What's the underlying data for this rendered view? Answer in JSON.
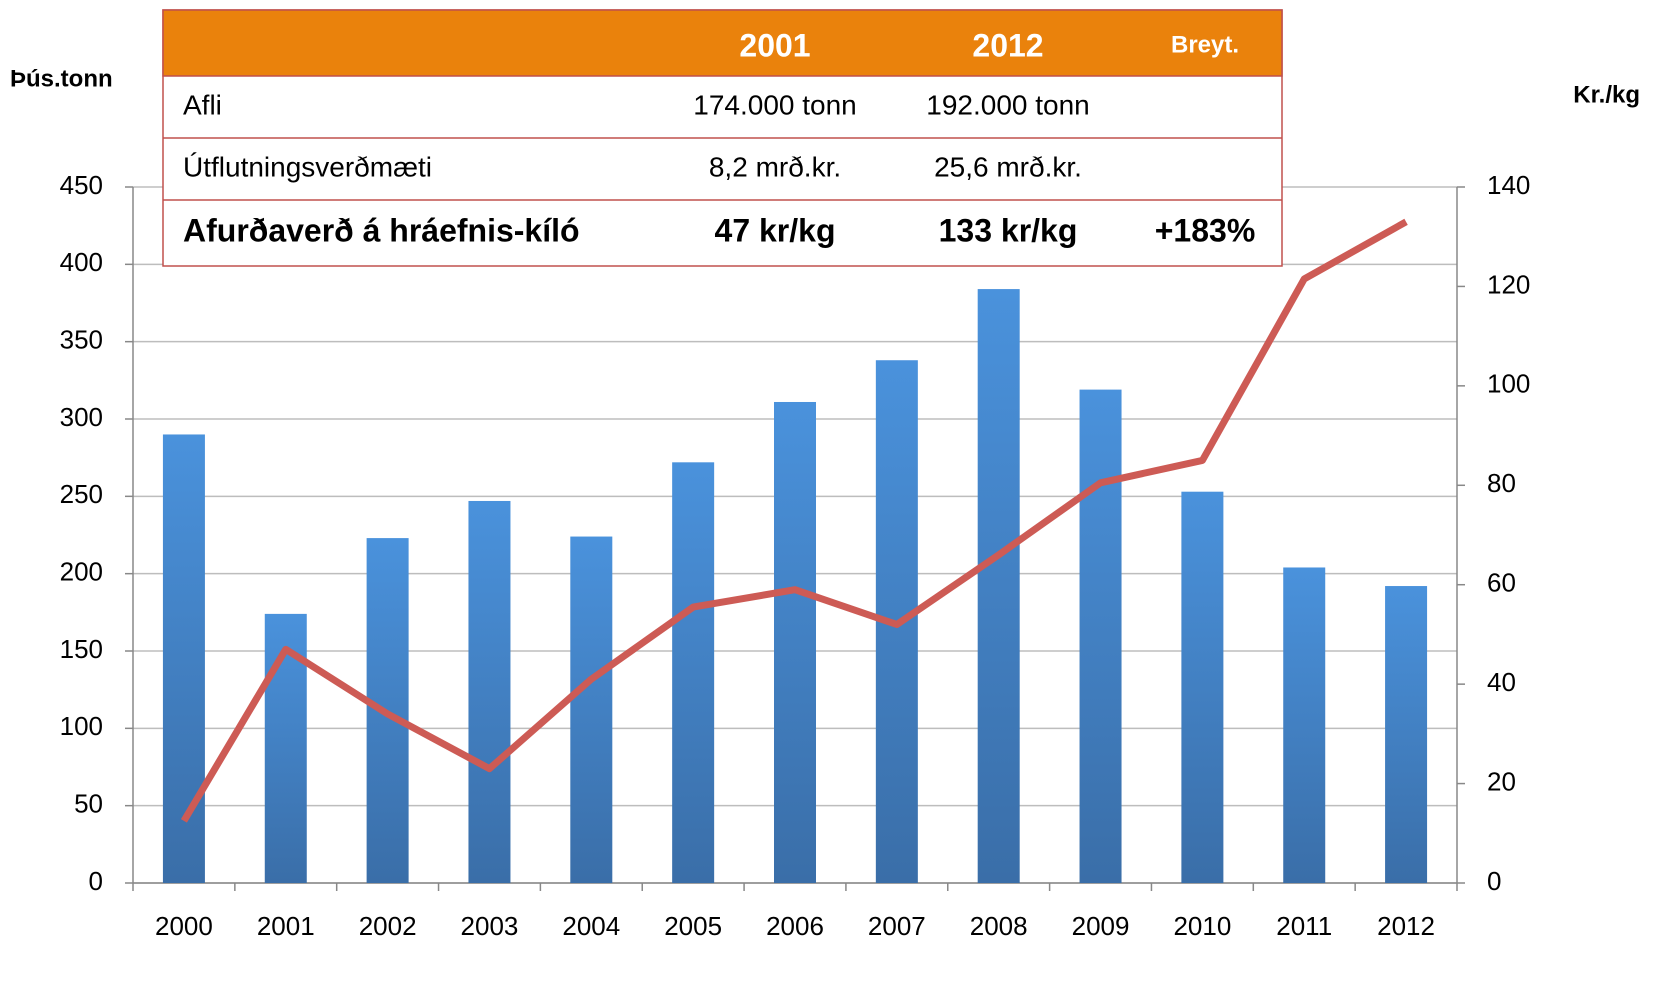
{
  "chart_data": {
    "type": "bar_line",
    "y_label": "Þús.tonn",
    "y2_label": "Kr./kg",
    "categories": [
      "2000",
      "2001",
      "2002",
      "2003",
      "2004",
      "2005",
      "2006",
      "2007",
      "2008",
      "2009",
      "2010",
      "2011",
      "2012"
    ],
    "series": [
      {
        "type": "bar",
        "color": "#4a90d9",
        "values": [
          290,
          174,
          223,
          247,
          224,
          272,
          311,
          338,
          384,
          319,
          253,
          204,
          192
        ]
      },
      {
        "type": "line",
        "axis": "y2",
        "color": "#cd5b55",
        "values": [
          12.5,
          47,
          34,
          23,
          41,
          55.5,
          59,
          52,
          66,
          80.5,
          85,
          121.5,
          133
        ]
      }
    ],
    "ylim": [
      0,
      450
    ],
    "yticks": [
      0,
      50,
      100,
      150,
      200,
      250,
      300,
      350,
      400,
      450
    ],
    "y2lim": [
      0,
      140
    ],
    "y2ticks": [
      0,
      20,
      40,
      60,
      80,
      100,
      120,
      140
    ],
    "grid": true
  },
  "table": {
    "columns": [
      "2001",
      "2012",
      "Breyt."
    ],
    "rows": [
      {
        "label": "Afli",
        "cells": [
          "174.000 tonn",
          "192.000 tonn"
        ]
      },
      {
        "label": "Útflutningsverðmæti",
        "cells": [
          "8,2 mrð.kr.",
          "25,6 mrð.kr."
        ]
      },
      {
        "label": "Afurðaverð á hráefnis-kíló",
        "cells": [
          "47 kr/kg",
          "133 kr/kg",
          "+183%"
        ]
      }
    ]
  }
}
